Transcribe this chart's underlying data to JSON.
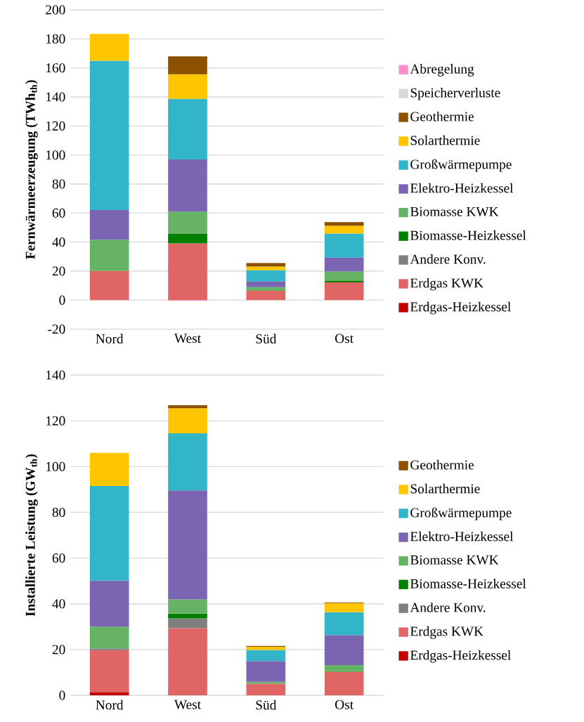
{
  "chart_data": [
    {
      "type": "bar",
      "stacked": true,
      "grid": "y",
      "legend": "right",
      "ylabel": "Fernwärmeerzeugung (TWh$_{th}$)",
      "categories": [
        "Nord",
        "West",
        "Süd",
        "Ost"
      ],
      "ylim": [
        -20,
        200
      ],
      "yticks": [
        -20,
        0,
        20,
        40,
        60,
        80,
        100,
        120,
        140,
        160,
        180,
        200
      ],
      "series": [
        {
          "name": "Erdgas-Heizkessel",
          "color": "#c00000",
          "values": [
            0,
            0,
            0,
            0
          ]
        },
        {
          "name": "Erdgas KWK",
          "color": "#e06666",
          "values": [
            20.1,
            39.1,
            6.4,
            12.2
          ]
        },
        {
          "name": "Andere Konv.",
          "color": "#808080",
          "values": [
            0,
            0,
            0,
            0
          ]
        },
        {
          "name": "Biomasse-Heizkessel",
          "color": "#008000",
          "values": [
            0,
            6.6,
            0,
            1.0
          ]
        },
        {
          "name": "Biomasse KWK",
          "color": "#66b366",
          "values": [
            21.6,
            15.3,
            2.6,
            6.6
          ]
        },
        {
          "name": "Elektro-Heizkessel",
          "color": "#7b65b3",
          "values": [
            20.4,
            35.9,
            3.9,
            9.5
          ]
        },
        {
          "name": "Großwärmepumpe",
          "color": "#33b5c9",
          "values": [
            102.8,
            41.8,
            7.7,
            16.6
          ]
        },
        {
          "name": "Solarthermie",
          "color": "#ffc600",
          "values": [
            18.5,
            16.9,
            2.6,
            5.3
          ]
        },
        {
          "name": "Geothermie",
          "color": "#8b5000",
          "values": [
            0,
            12.4,
            2.4,
            2.5
          ]
        },
        {
          "name": "Speicherverluste",
          "color": "#d9d9d9",
          "values": [
            0,
            0,
            0,
            0
          ]
        },
        {
          "name": "Abregelung",
          "color": "#f78fc8",
          "values": [
            0,
            -0.5,
            0,
            0
          ]
        }
      ]
    },
    {
      "type": "bar",
      "stacked": true,
      "grid": "y",
      "legend": "right",
      "ylabel": "Installierte Leistung (GW$_{th}$)",
      "categories": [
        "Nord",
        "West",
        "Süd",
        "Ost"
      ],
      "ylim": [
        0,
        140
      ],
      "yticks": [
        0,
        20,
        40,
        60,
        80,
        100,
        120,
        140
      ],
      "series": [
        {
          "name": "Erdgas-Heizkessel",
          "color": "#c00000",
          "values": [
            1.2,
            0,
            0,
            0
          ]
        },
        {
          "name": "Erdgas KWK",
          "color": "#e06666",
          "values": [
            18.5,
            29.3,
            5.1,
            10.3
          ]
        },
        {
          "name": "Andere Konv.",
          "color": "#808080",
          "values": [
            0.8,
            4.3,
            0,
            0
          ]
        },
        {
          "name": "Biomasse-Heizkessel",
          "color": "#008000",
          "values": [
            0,
            2.1,
            0,
            0.3
          ]
        },
        {
          "name": "Biomasse KWK",
          "color": "#66b366",
          "values": [
            9.5,
            6.2,
            0.8,
            2.6
          ]
        },
        {
          "name": "Elektro-Heizkessel",
          "color": "#7b65b3",
          "values": [
            20.1,
            47.7,
            9.1,
            13.1
          ]
        },
        {
          "name": "Großwärmepumpe",
          "color": "#33b5c9",
          "values": [
            41.4,
            24.9,
            4.8,
            10.0
          ]
        },
        {
          "name": "Solarthermie",
          "color": "#ffc600",
          "values": [
            14.5,
            11.0,
            1.4,
            4.0
          ]
        },
        {
          "name": "Geothermie",
          "color": "#8b5000",
          "values": [
            0,
            1.3,
            0.4,
            0.3
          ]
        }
      ]
    }
  ]
}
